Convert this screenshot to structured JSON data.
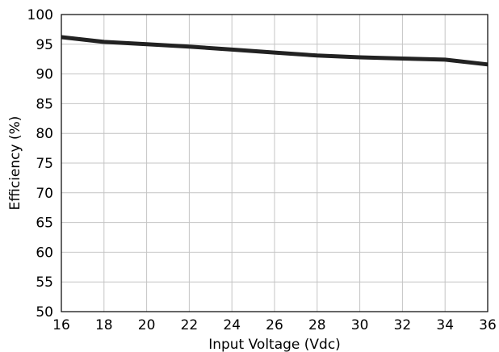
{
  "chart_data": {
    "type": "line",
    "title": "",
    "xlabel": "Input Voltage (Vdc)",
    "ylabel": "Efficiency (%)",
    "xlim": [
      16,
      36
    ],
    "ylim": [
      50,
      100
    ],
    "xticks": [
      16,
      18,
      20,
      22,
      24,
      26,
      28,
      30,
      32,
      34,
      36
    ],
    "yticks": [
      50,
      55,
      60,
      65,
      70,
      75,
      80,
      85,
      90,
      95,
      100
    ],
    "grid": true,
    "legend": "none",
    "series": [
      {
        "color": "#222222",
        "x": [
          16,
          18,
          20,
          22,
          24,
          26,
          28,
          30,
          32,
          34,
          36
        ],
        "y": [
          96.2,
          95.4,
          95.0,
          94.6,
          94.1,
          93.6,
          93.1,
          92.8,
          92.6,
          92.4,
          91.6
        ]
      }
    ]
  }
}
